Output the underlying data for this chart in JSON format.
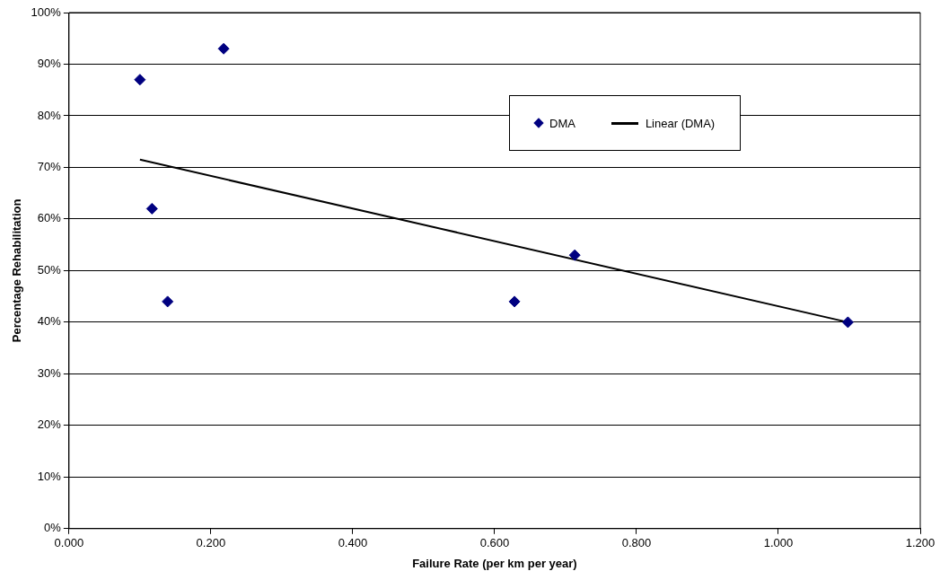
{
  "chart_data": {
    "type": "scatter",
    "xlabel": "Failure Rate (per km per year)",
    "ylabel": "Percentage Rehabilitation",
    "series": [
      {
        "name": "DMA",
        "color": "#000080",
        "marker": "diamond",
        "x": [
          0.1,
          0.218,
          0.117,
          0.139,
          0.628,
          0.713,
          1.098
        ],
        "values": [
          87,
          93,
          62,
          44,
          44,
          53,
          40
        ]
      },
      {
        "name": "Linear (DMA)",
        "type": "line",
        "color": "#000000",
        "marker": "none",
        "line_style": "solid",
        "x": [
          0.1,
          1.098
        ],
        "values": [
          71.5,
          40
        ]
      }
    ],
    "xlim": [
      0,
      1.2
    ],
    "xticks": [
      {
        "value": 0,
        "label": "0.000"
      },
      {
        "value": 0.2,
        "label": "0.200"
      },
      {
        "value": 0.4,
        "label": "0.400"
      },
      {
        "value": 0.6,
        "label": "0.600"
      },
      {
        "value": 0.8,
        "label": "0.800"
      },
      {
        "value": 1.0,
        "label": "1.000"
      },
      {
        "value": 1.2,
        "label": "1.200"
      }
    ],
    "ylim": [
      0,
      100
    ],
    "yticks": [
      {
        "value": 0,
        "label": "0%"
      },
      {
        "value": 10,
        "label": "10%"
      },
      {
        "value": 20,
        "label": "20%"
      },
      {
        "value": 30,
        "label": "30%"
      },
      {
        "value": 40,
        "label": "40%"
      },
      {
        "value": 50,
        "label": "50%"
      },
      {
        "value": 60,
        "label": "60%"
      },
      {
        "value": 70,
        "label": "70%"
      },
      {
        "value": 80,
        "label": "80%"
      },
      {
        "value": 90,
        "label": "90%"
      },
      {
        "value": 100,
        "label": "100%"
      }
    ],
    "grid": "y",
    "legend": "top right"
  }
}
